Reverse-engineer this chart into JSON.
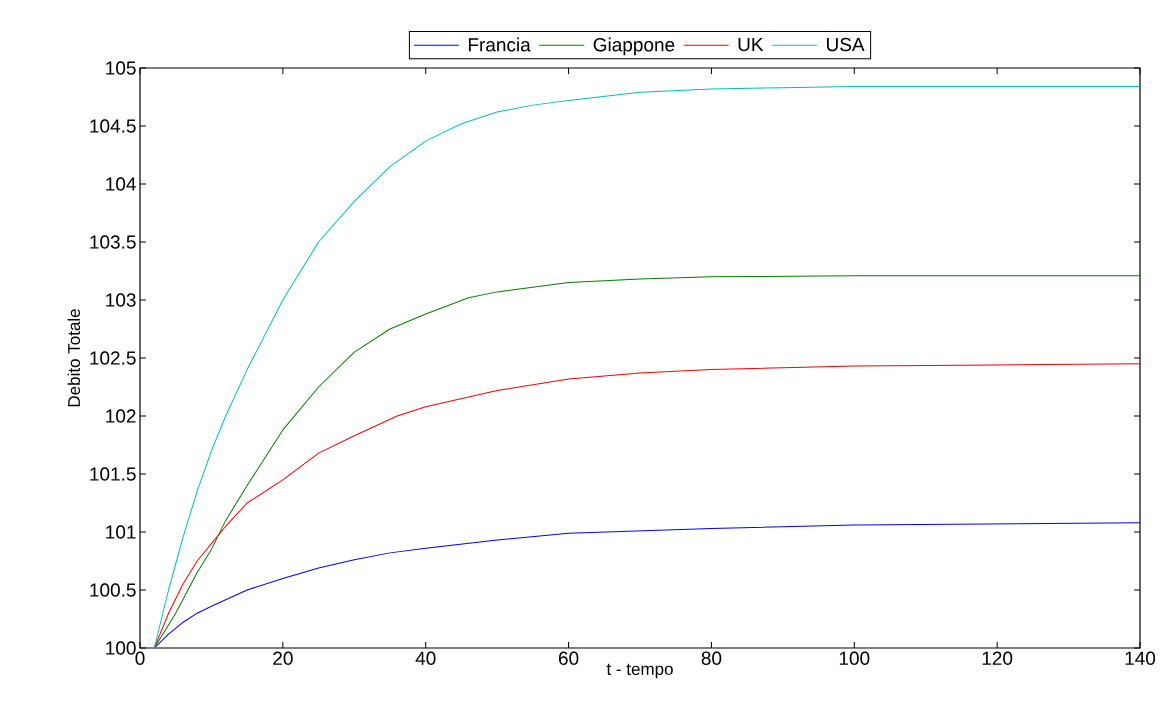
{
  "chart_data": {
    "type": "line",
    "xlabel": "t - tempo",
    "ylabel": "Debito Totale",
    "xlim": [
      0,
      140
    ],
    "ylim": [
      100,
      105
    ],
    "xticks": [
      0,
      20,
      40,
      60,
      80,
      100,
      120,
      140
    ],
    "yticks": [
      100,
      100.5,
      101,
      101.5,
      102,
      102.5,
      103,
      103.5,
      104,
      104.5,
      105
    ],
    "grid": false,
    "legend": "top",
    "series": [
      {
        "name": "Francia",
        "color": "#0000ff",
        "x": [
          2,
          4,
          6,
          8,
          10,
          15,
          20,
          25,
          30,
          35,
          40,
          50,
          60,
          80,
          100,
          120,
          140
        ],
        "values": [
          100,
          100.12,
          100.22,
          100.3,
          100.36,
          100.5,
          100.6,
          100.69,
          100.76,
          100.82,
          100.86,
          100.93,
          100.99,
          101.03,
          101.06,
          101.07,
          101.08
        ]
      },
      {
        "name": "Giappone",
        "color": "#008000",
        "x": [
          2,
          5,
          8,
          10,
          12,
          15,
          20,
          25,
          30,
          35,
          40,
          46,
          50,
          60,
          70,
          80,
          100,
          140
        ],
        "values": [
          100,
          100.3,
          100.65,
          100.85,
          101.1,
          101.4,
          101.88,
          102.25,
          102.55,
          102.75,
          102.88,
          103.02,
          103.07,
          103.15,
          103.18,
          103.2,
          103.21,
          103.21
        ]
      },
      {
        "name": "UK",
        "color": "#ff0000",
        "x": [
          2,
          4,
          6,
          8,
          10,
          12,
          15,
          20,
          25,
          30,
          36,
          40,
          50,
          60,
          70,
          80,
          100,
          120,
          140
        ],
        "values": [
          100,
          100.3,
          100.55,
          100.75,
          100.9,
          101.05,
          101.25,
          101.45,
          101.68,
          101.83,
          102.0,
          102.08,
          102.22,
          102.32,
          102.37,
          102.4,
          102.43,
          102.44,
          102.45
        ]
      },
      {
        "name": "USA",
        "color": "#00bfbf",
        "x": [
          2,
          4,
          6,
          8,
          10,
          12,
          15,
          20,
          25,
          30,
          35,
          40,
          45,
          50,
          55,
          60,
          70,
          80,
          90,
          100,
          120,
          140
        ],
        "values": [
          100,
          100.5,
          100.95,
          101.35,
          101.7,
          102.0,
          102.4,
          103.0,
          103.5,
          103.85,
          104.15,
          104.37,
          104.52,
          104.62,
          104.68,
          104.72,
          104.79,
          104.82,
          104.83,
          104.84,
          104.84,
          104.84
        ]
      }
    ]
  }
}
